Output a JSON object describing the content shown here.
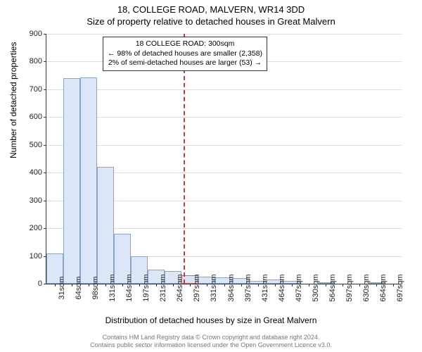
{
  "title_line1": "18, COLLEGE ROAD, MALVERN, WR14 3DD",
  "title_line2": "Size of property relative to detached houses in Great Malvern",
  "ylabel": "Number of detached properties",
  "xlabel": "Distribution of detached houses by size in Great Malvern",
  "footer_line1": "Contains HM Land Registry data © Crown copyright and database right 2024.",
  "footer_line2": "Contains public sector information licensed under the Open Government Licence v3.0.",
  "annotation": {
    "line1": "18 COLLEGE ROAD: 300sqm",
    "line2": "← 98% of detached houses are smaller (2,358)",
    "line3": "2% of semi-detached houses are larger (53) →"
  },
  "chart": {
    "type": "histogram",
    "ylim": [
      0,
      900
    ],
    "ytick_step": 100,
    "background_color": "#ffffff",
    "grid_color": "#dddddd",
    "bar_fill": "#dbe7f6",
    "bar_stroke": "#8aa4c8",
    "highlight_stroke": "#c96a6a",
    "marker_color": "#c04040",
    "marker_position_sqm": 300,
    "x_categories": [
      "31sqm",
      "64sqm",
      "98sqm",
      "131sqm",
      "164sqm",
      "197sqm",
      "231sqm",
      "264sqm",
      "297sqm",
      "331sqm",
      "364sqm",
      "397sqm",
      "431sqm",
      "464sqm",
      "497sqm",
      "530sqm",
      "564sqm",
      "597sqm",
      "630sqm",
      "664sqm",
      "697sqm"
    ],
    "values": [
      110,
      740,
      742,
      420,
      180,
      100,
      50,
      45,
      30,
      25,
      22,
      20,
      10,
      15,
      10,
      0,
      5,
      0,
      0,
      5,
      0
    ],
    "highlight_index": 8
  }
}
